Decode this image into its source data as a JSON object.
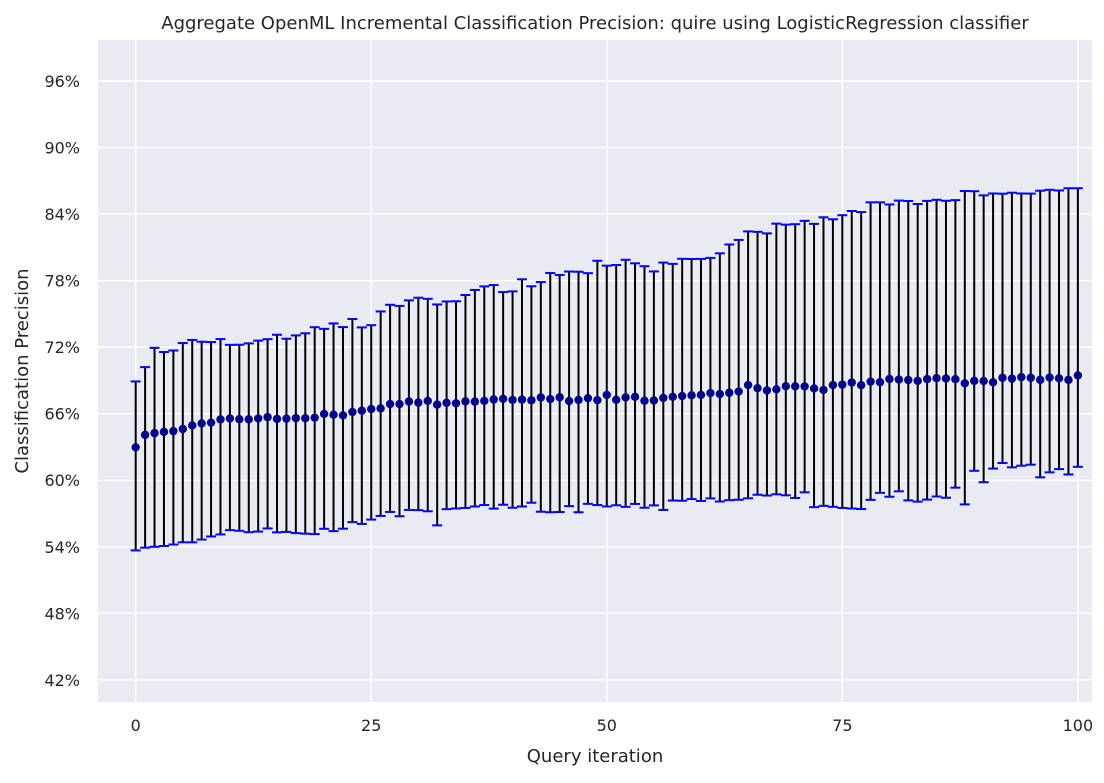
{
  "chart_data": {
    "type": "scatter",
    "title": "Aggregate OpenML Incremental Classification Precision: quire using LogisticRegression classifier",
    "xlabel": "Query iteration",
    "ylabel": "Classification Precision",
    "xlim": [
      -4,
      101.5
    ],
    "ylim": [
      0.4,
      0.997
    ],
    "x_ticks": [
      0,
      25,
      50,
      75,
      100
    ],
    "x_tick_labels": [
      "0",
      "25",
      "50",
      "75",
      "100"
    ],
    "y_ticks": [
      0.42,
      0.48,
      0.54,
      0.6,
      0.66,
      0.72,
      0.78,
      0.84,
      0.9,
      0.96
    ],
    "y_tick_labels": [
      "42%",
      "48%",
      "54%",
      "60%",
      "66%",
      "72%",
      "78%",
      "84%",
      "90%",
      "96%"
    ],
    "grid": true,
    "legend": "none",
    "colors": {
      "background": "#eaeaf2",
      "grid": "#ffffff",
      "point": "#00008b",
      "error_bar": "#000000",
      "cap": "#0000ff"
    },
    "series": [
      {
        "x": [
          0,
          1,
          2,
          3,
          4,
          5,
          6,
          7,
          8,
          9,
          10,
          11,
          12,
          13,
          14,
          15,
          16,
          17,
          18,
          19,
          20,
          21,
          22,
          23,
          24,
          25,
          26,
          27,
          28,
          29,
          30,
          31,
          32,
          33,
          34,
          35,
          36,
          37,
          38,
          39,
          40,
          41,
          42,
          43,
          44,
          45,
          46,
          47,
          48,
          49,
          50,
          51,
          52,
          53,
          54,
          55,
          56,
          57,
          58,
          59,
          60,
          61,
          62,
          63,
          64,
          65,
          66,
          67,
          68,
          69,
          70,
          71,
          72,
          73,
          74,
          75,
          76,
          77,
          78,
          79,
          80,
          81,
          82,
          83,
          84,
          85,
          86,
          87,
          88,
          89,
          90,
          91,
          92,
          93,
          94,
          95,
          96,
          97,
          98,
          99,
          100
        ],
        "y": [
          0.6297,
          0.6409,
          0.6425,
          0.6436,
          0.6443,
          0.6462,
          0.6494,
          0.6512,
          0.6519,
          0.6548,
          0.6557,
          0.655,
          0.6549,
          0.6557,
          0.6569,
          0.6553,
          0.6555,
          0.656,
          0.6559,
          0.6564,
          0.6598,
          0.6591,
          0.6584,
          0.6615,
          0.6627,
          0.6642,
          0.6648,
          0.6687,
          0.6687,
          0.671,
          0.67,
          0.6715,
          0.6682,
          0.6698,
          0.6694,
          0.6711,
          0.6709,
          0.6715,
          0.6728,
          0.6734,
          0.6724,
          0.6727,
          0.6721,
          0.6746,
          0.6732,
          0.6748,
          0.6714,
          0.6724,
          0.674,
          0.6722,
          0.6769,
          0.6725,
          0.6747,
          0.6752,
          0.6717,
          0.6719,
          0.6742,
          0.6752,
          0.6759,
          0.6766,
          0.6769,
          0.6786,
          0.6777,
          0.6789,
          0.68,
          0.6858,
          0.683,
          0.681,
          0.682,
          0.6848,
          0.6847,
          0.6846,
          0.6828,
          0.6814,
          0.6858,
          0.6862,
          0.6881,
          0.6857,
          0.6889,
          0.6884,
          0.6913,
          0.6908,
          0.6904,
          0.6896,
          0.6912,
          0.692,
          0.6917,
          0.6911,
          0.6874,
          0.6896,
          0.6894,
          0.6883,
          0.6924,
          0.6916,
          0.693,
          0.6924,
          0.6905,
          0.6926,
          0.6919,
          0.6905,
          0.6945
        ],
        "err_low": [
          0.5367,
          0.5392,
          0.54,
          0.5407,
          0.542,
          0.544,
          0.544,
          0.5465,
          0.5493,
          0.5511,
          0.555,
          0.5544,
          0.5531,
          0.5537,
          0.5565,
          0.553,
          0.5534,
          0.5523,
          0.5518,
          0.5514,
          0.5562,
          0.5541,
          0.5563,
          0.5622,
          0.5606,
          0.5645,
          0.5678,
          0.5714,
          0.5675,
          0.5732,
          0.573,
          0.572,
          0.5593,
          0.5739,
          0.5745,
          0.575,
          0.5763,
          0.5776,
          0.5744,
          0.5779,
          0.5752,
          0.5763,
          0.5797,
          0.5716,
          0.5711,
          0.5713,
          0.5766,
          0.5711,
          0.5787,
          0.5776,
          0.5763,
          0.5774,
          0.576,
          0.5786,
          0.5752,
          0.5773,
          0.5732,
          0.5817,
          0.5815,
          0.583,
          0.5813,
          0.5836,
          0.5808,
          0.582,
          0.5824,
          0.5837,
          0.5869,
          0.5862,
          0.5873,
          0.5864,
          0.584,
          0.5891,
          0.5757,
          0.5769,
          0.576,
          0.575,
          0.5745,
          0.574,
          0.5823,
          0.5886,
          0.5851,
          0.59,
          0.5818,
          0.5807,
          0.5825,
          0.5853,
          0.5842,
          0.5933,
          0.5782,
          0.6085,
          0.5982,
          0.6105,
          0.6155,
          0.6116,
          0.6131,
          0.614,
          0.6026,
          0.6071,
          0.61,
          0.6052,
          0.6121
        ],
        "err_high": [
          0.6891,
          0.702,
          0.7194,
          0.7156,
          0.717,
          0.7237,
          0.7265,
          0.7249,
          0.7246,
          0.7273,
          0.7221,
          0.7222,
          0.7234,
          0.7259,
          0.7272,
          0.7312,
          0.7276,
          0.7306,
          0.7325,
          0.738,
          0.7365,
          0.7414,
          0.7381,
          0.7454,
          0.7378,
          0.7398,
          0.7522,
          0.7582,
          0.7572,
          0.7622,
          0.7646,
          0.7636,
          0.7585,
          0.7612,
          0.7614,
          0.767,
          0.7716,
          0.7748,
          0.776,
          0.7697,
          0.7703,
          0.7812,
          0.7749,
          0.7787,
          0.7869,
          0.7851,
          0.7882,
          0.788,
          0.7867,
          0.7979,
          0.7935,
          0.7941,
          0.7988,
          0.7956,
          0.793,
          0.7883,
          0.7963,
          0.7951,
          0.7997,
          0.7995,
          0.7996,
          0.8005,
          0.8046,
          0.8126,
          0.8167,
          0.8244,
          0.824,
          0.8226,
          0.8314,
          0.8305,
          0.8309,
          0.8339,
          0.8312,
          0.8371,
          0.8353,
          0.839,
          0.8428,
          0.8418,
          0.8506,
          0.8506,
          0.8487,
          0.8522,
          0.8518,
          0.8491,
          0.8519,
          0.8529,
          0.852,
          0.8526,
          0.8608,
          0.8606,
          0.8569,
          0.8586,
          0.8584,
          0.8593,
          0.8586,
          0.8585,
          0.8611,
          0.8619,
          0.8613,
          0.8633,
          0.8633
        ]
      }
    ]
  }
}
